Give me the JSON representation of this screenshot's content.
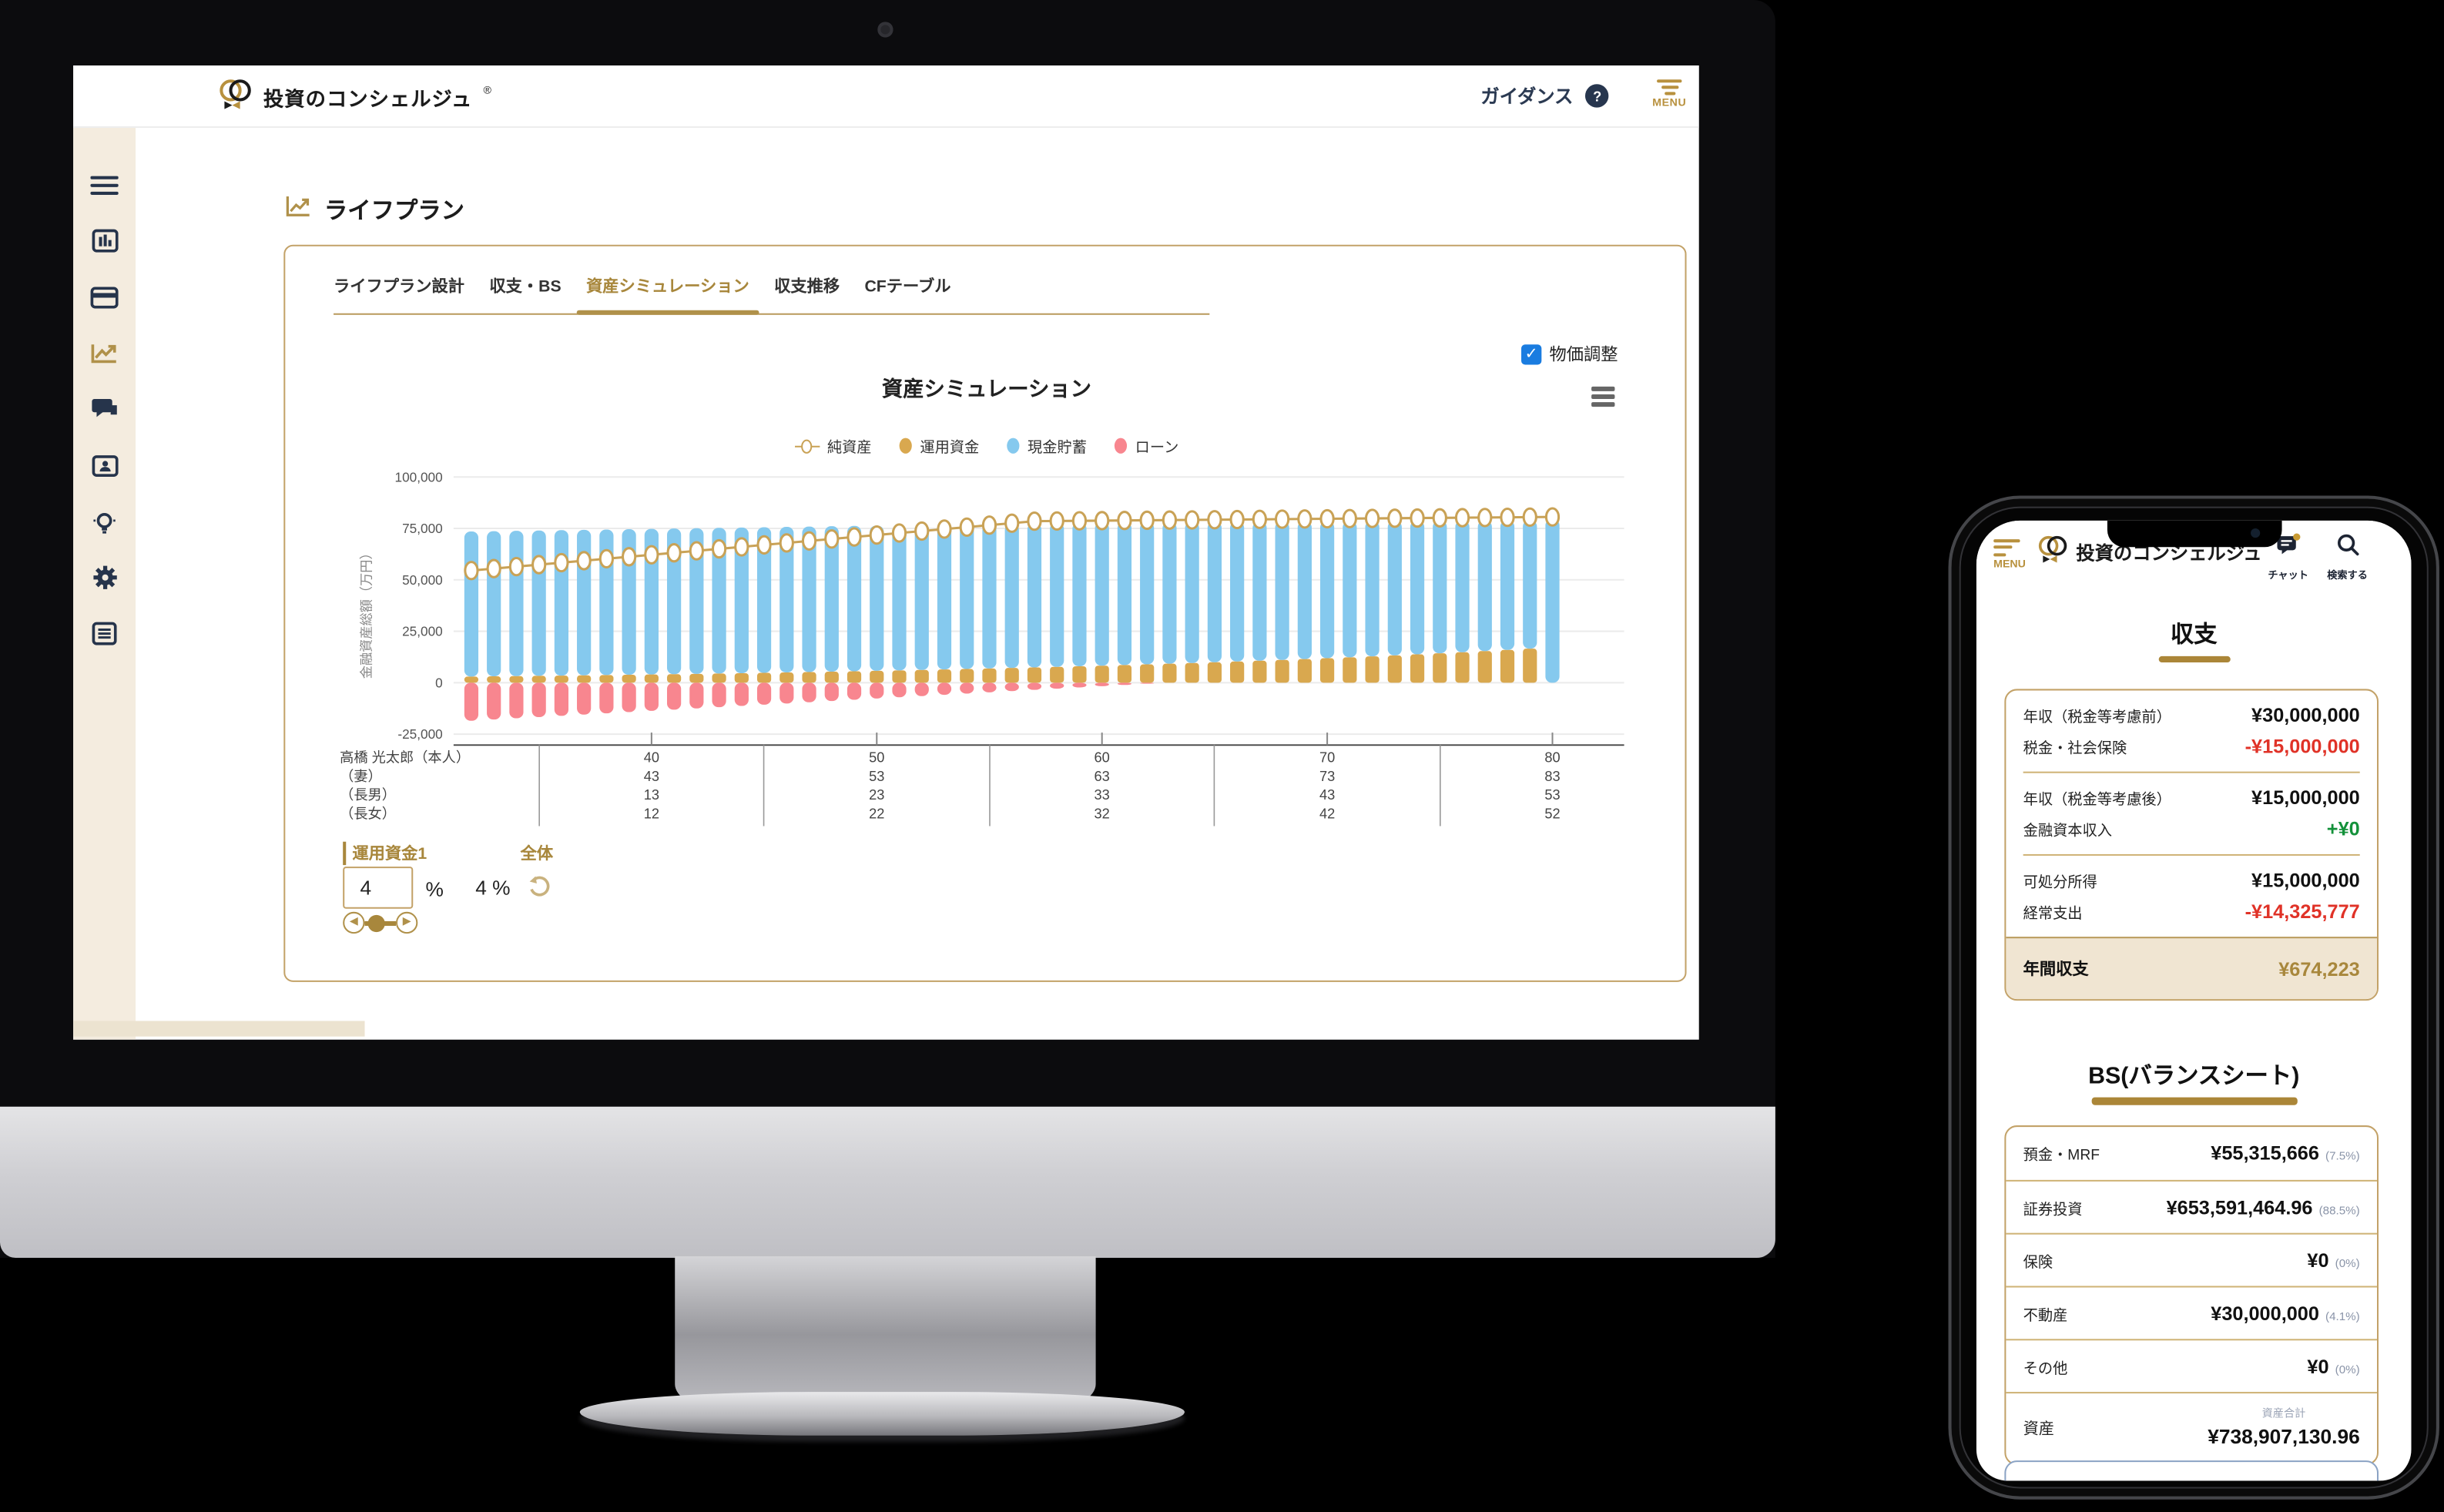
{
  "colors": {
    "gold": "#a8873c",
    "gold_line": "#c9a256",
    "navy": "#26344b",
    "beige": "#f4ecdf",
    "bar_blue": "#85c9ee",
    "bar_gold": "#d9a84f",
    "bar_red": "#f8868f",
    "checkbox_blue": "#1a7ce0",
    "red_text": "#e03227",
    "green_text": "#13913a"
  },
  "desktop": {
    "header": {
      "logo_text": "投資のコンシェルジュ",
      "logo_reg": "®",
      "guidance_label": "ガイダンス",
      "help_icon": "?",
      "menu_label": "MENU"
    },
    "sidebar": {
      "items": [
        {
          "name": "menu",
          "icon": "hamburger-icon"
        },
        {
          "name": "dashboard",
          "icon": "bar-chart-icon"
        },
        {
          "name": "accounts",
          "icon": "credit-card-icon"
        },
        {
          "name": "lifeplan",
          "icon": "trend-chart-icon",
          "active": true
        },
        {
          "name": "chat",
          "icon": "chat-bubbles-icon"
        },
        {
          "name": "profile",
          "icon": "id-card-icon"
        },
        {
          "name": "ideas",
          "icon": "lightbulb-icon"
        },
        {
          "name": "settings",
          "icon": "gear-icon"
        },
        {
          "name": "reports",
          "icon": "document-icon"
        }
      ]
    },
    "page_title": "ライフプラン",
    "tabs": [
      {
        "label": "ライフプラン設計",
        "active": false
      },
      {
        "label": "収支・BS",
        "active": false
      },
      {
        "label": "資産シミュレーション",
        "active": true
      },
      {
        "label": "収支推移",
        "active": false
      },
      {
        "label": "CFテーブル",
        "active": false
      }
    ],
    "chart_header": {
      "price_adjust_label": "物価調整",
      "checked": true,
      "title": "資産シミュレーション"
    },
    "legend": [
      {
        "label": "純資産",
        "type": "line",
        "color": "#c9a256"
      },
      {
        "label": "運用資金",
        "type": "dot",
        "color": "#d9a84f"
      },
      {
        "label": "現金貯蓄",
        "type": "dot",
        "color": "#85c9ee"
      },
      {
        "label": "ローン",
        "type": "dot",
        "color": "#f8868f"
      }
    ],
    "family_rows": [
      {
        "name": "高橋 光太郎（本人）",
        "ages": [
          "40",
          "50",
          "60",
          "70",
          "80"
        ]
      },
      {
        "name": "（妻）",
        "ages": [
          "43",
          "53",
          "63",
          "73",
          "83"
        ]
      },
      {
        "name": "（長男）",
        "ages": [
          "13",
          "23",
          "33",
          "43",
          "53"
        ]
      },
      {
        "name": "（長女）",
        "ages": [
          "12",
          "22",
          "32",
          "42",
          "52"
        ]
      }
    ],
    "controls": {
      "fund_label": "運用資金1",
      "overall_label": "全体",
      "fund_value": "4",
      "percent_symbol": "%",
      "overall_value": "4 %"
    }
  },
  "chart_data": {
    "type": "bar",
    "stacked": true,
    "title": "資産シミュレーション",
    "ylabel": "金融資産総額（万円）",
    "ylim": [
      -25000,
      100000
    ],
    "yticks": [
      100000,
      75000,
      50000,
      25000,
      0,
      -25000
    ],
    "x_ticks": [
      40,
      50,
      60,
      70,
      80
    ],
    "x": [
      32,
      33,
      34,
      35,
      36,
      37,
      38,
      39,
      40,
      41,
      42,
      43,
      44,
      45,
      46,
      47,
      48,
      49,
      50,
      51,
      52,
      53,
      54,
      55,
      56,
      57,
      58,
      59,
      60,
      61,
      62,
      63,
      64,
      65,
      66,
      67,
      68,
      69,
      70,
      71,
      72,
      73,
      74,
      75,
      76,
      77,
      78,
      79,
      80
    ],
    "series": [
      {
        "name": "現金貯蓄",
        "type": "bar",
        "color": "#85c9ee",
        "values": [
          70500,
          70550,
          70590,
          70630,
          70670,
          70700,
          70730,
          70750,
          70770,
          70780,
          70790,
          70790,
          70780,
          70770,
          70750,
          70730,
          70700,
          70660,
          70610,
          70560,
          70500,
          70430,
          70350,
          70260,
          70170,
          70060,
          69950,
          69820,
          69690,
          69430,
          69160,
          68880,
          68590,
          68290,
          67970,
          67640,
          67290,
          66930,
          66560,
          66170,
          65760,
          65340,
          64900,
          64440,
          63960,
          63460,
          62940,
          62400,
          79500
        ]
      },
      {
        "name": "運用資金",
        "type": "bar",
        "color": "#d9a84f",
        "values": [
          3000,
          3110,
          3230,
          3350,
          3470,
          3600,
          3730,
          3870,
          4010,
          4160,
          4310,
          4470,
          4640,
          4810,
          4990,
          5170,
          5360,
          5560,
          5770,
          5980,
          6200,
          6430,
          6670,
          6920,
          7170,
          7440,
          7710,
          8000,
          8290,
          8600,
          8920,
          9250,
          9590,
          9940,
          10310,
          10690,
          11090,
          11500,
          11920,
          12360,
          12820,
          13290,
          13780,
          14290,
          14820,
          15370,
          15940,
          16530,
          0
        ]
      },
      {
        "name": "ローン",
        "type": "bar",
        "color": "#f8868f",
        "values": [
          -18500,
          -17900,
          -17300,
          -16700,
          -16100,
          -15500,
          -14900,
          -14300,
          -13700,
          -13100,
          -12500,
          -11900,
          -11300,
          -10700,
          -10100,
          -9500,
          -8900,
          -8300,
          -7700,
          -7100,
          -6500,
          -5900,
          -5300,
          -4700,
          -4100,
          -3500,
          -2900,
          -2300,
          -1700,
          -1100,
          -500,
          0,
          0,
          0,
          0,
          0,
          0,
          0,
          0,
          0,
          0,
          0,
          0,
          0,
          0,
          0,
          0,
          0,
          0
        ]
      },
      {
        "name": "純資産",
        "type": "line",
        "color": "#c9a256",
        "values": [
          54500,
          55460,
          56420,
          57380,
          58340,
          59300,
          60260,
          61220,
          62180,
          63140,
          64100,
          65060,
          66020,
          66980,
          67940,
          68900,
          69860,
          70820,
          71780,
          72740,
          73700,
          74660,
          75620,
          76580,
          77540,
          78500,
          78590,
          78680,
          78770,
          78860,
          78950,
          79040,
          79130,
          79220,
          79310,
          79400,
          79490,
          79580,
          79670,
          79760,
          79850,
          79940,
          80030,
          80120,
          80210,
          80300,
          80390,
          80480,
          80570
        ]
      }
    ]
  },
  "phone": {
    "header": {
      "menu_label": "MENU",
      "logo_text": "投資のコンシェルジュ",
      "chat_label": "チャット",
      "search_label": "検索する"
    },
    "income": {
      "title": "収支",
      "groups": [
        [
          {
            "label": "年収（税金等考慮前）",
            "value": "¥30,000,000",
            "tone": "plain"
          },
          {
            "label": "税金・社会保険",
            "value": "-¥15,000,000",
            "tone": "red"
          }
        ],
        [
          {
            "label": "年収（税金等考慮後）",
            "value": "¥15,000,000",
            "tone": "plain"
          },
          {
            "label": "金融資本収入",
            "value": "+¥0",
            "tone": "green"
          }
        ],
        [
          {
            "label": "可処分所得",
            "value": "¥15,000,000",
            "tone": "plain"
          },
          {
            "label": "経常支出",
            "value": "-¥14,325,777",
            "tone": "red"
          }
        ]
      ],
      "total": {
        "label": "年間収支",
        "value": "¥674,223"
      }
    },
    "bs": {
      "title": "BS(バランスシート)",
      "rows": [
        {
          "label": "預金・MRF",
          "value": "¥55,315,666",
          "pct": "(7.5%)"
        },
        {
          "label": "証券投資",
          "value": "¥653,591,464.96",
          "pct": "(88.5%)"
        },
        {
          "label": "保険",
          "value": "¥0",
          "pct": "(0%)"
        },
        {
          "label": "不動産",
          "value": "¥30,000,000",
          "pct": "(4.1%)"
        },
        {
          "label": "その他",
          "value": "¥0",
          "pct": "(0%)"
        }
      ],
      "total": {
        "label": "資産",
        "sub_label": "資産合計",
        "value": "¥738,907,130.96"
      }
    }
  }
}
